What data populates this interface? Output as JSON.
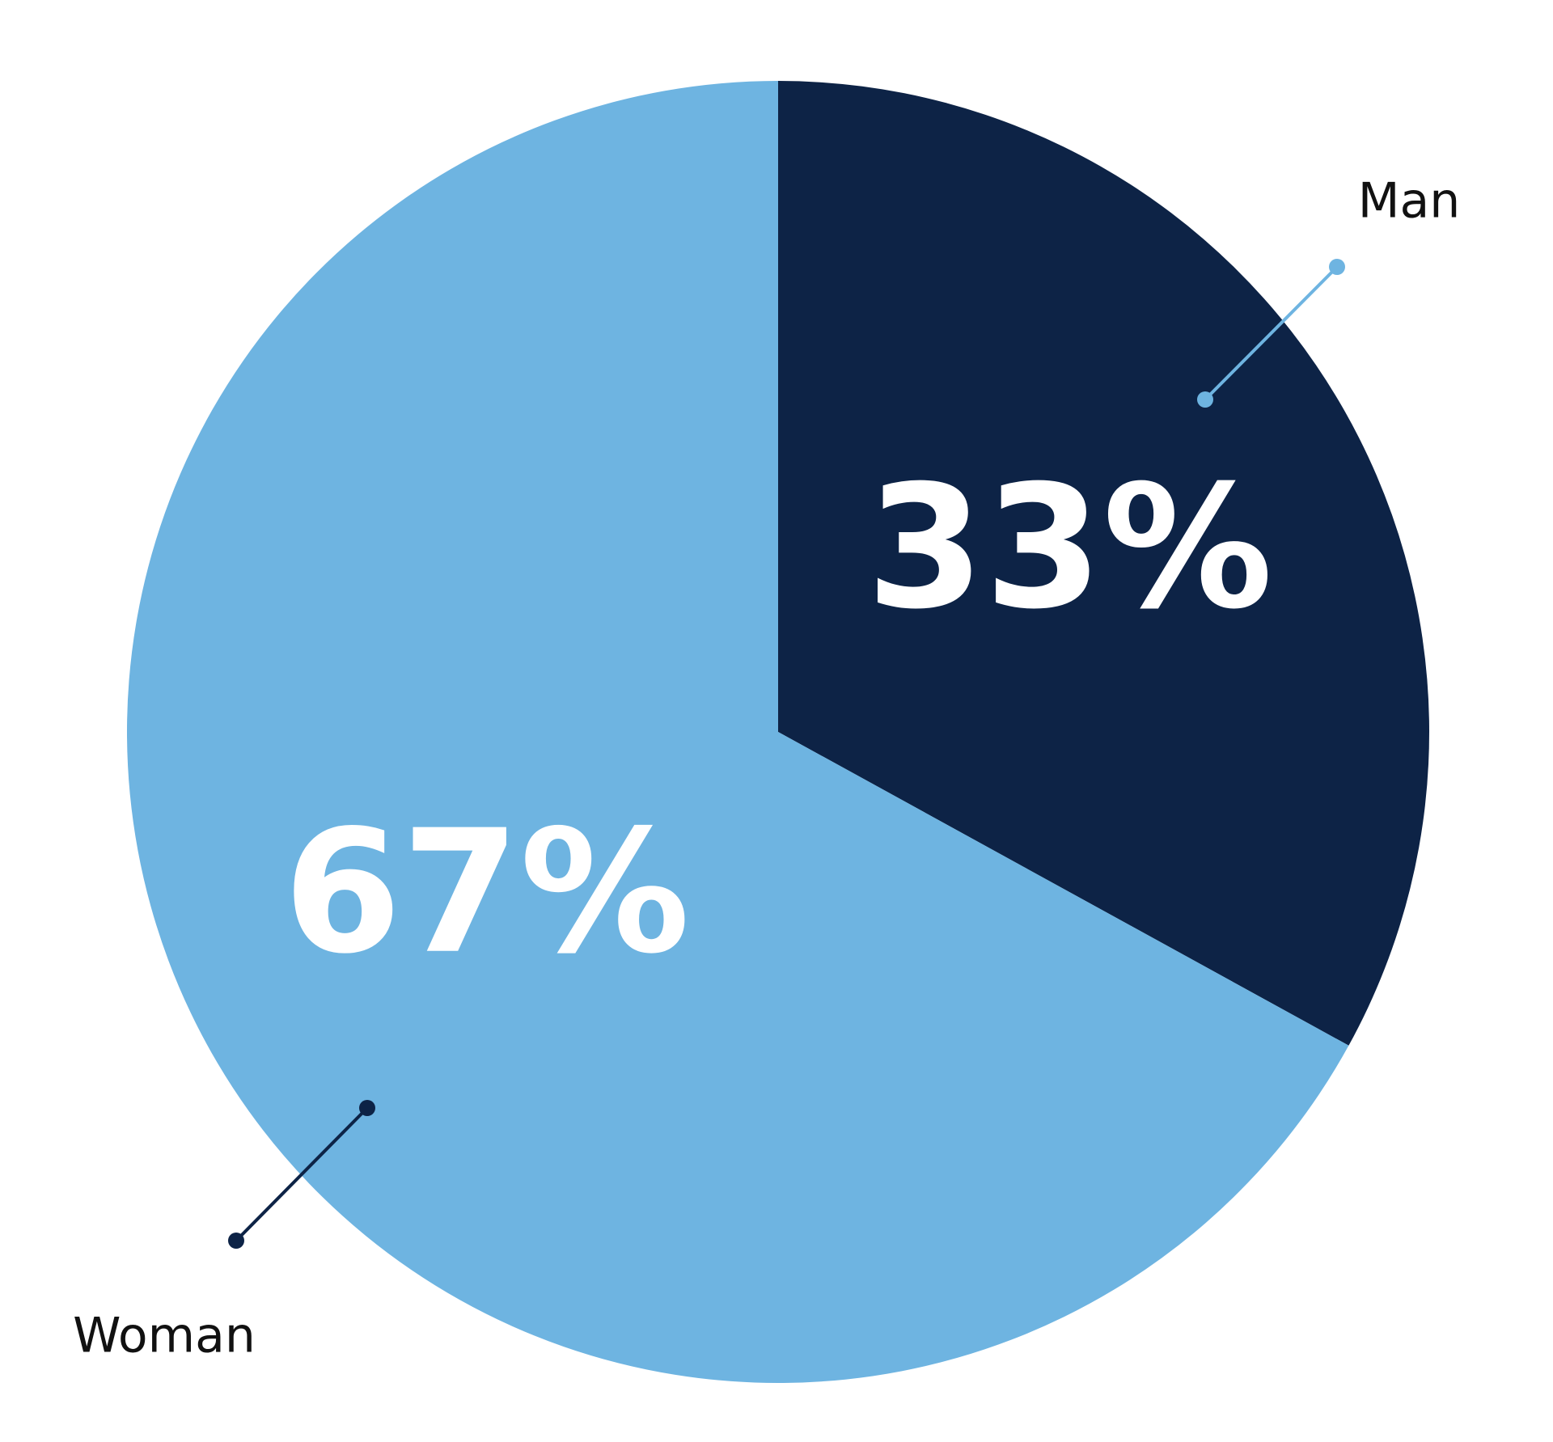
{
  "chart_data": {
    "type": "pie",
    "categories": [
      "Man",
      "Woman"
    ],
    "values": [
      33,
      67
    ],
    "value_labels": [
      "33%",
      "67%"
    ],
    "colors": [
      "#0d2346",
      "#6eb4e1"
    ]
  }
}
